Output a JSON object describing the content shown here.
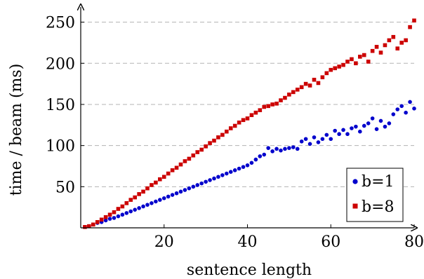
{
  "chart_data": {
    "type": "scatter",
    "xlabel": "sentence length",
    "ylabel": "time / beam (ms)",
    "xlim": [
      0,
      80
    ],
    "ylim": [
      0,
      265
    ],
    "xticks": [
      20,
      40,
      60,
      80
    ],
    "yticks": [
      50,
      100,
      150,
      200,
      250
    ],
    "grid": "horizontal dashed",
    "legend_position": "bottom-right",
    "series": [
      {
        "name": "b=1",
        "marker": "circle",
        "color": "#0000cc",
        "x": [
          1,
          2,
          3,
          4,
          5,
          6,
          7,
          8,
          9,
          10,
          11,
          12,
          13,
          14,
          15,
          16,
          17,
          18,
          19,
          20,
          21,
          22,
          23,
          24,
          25,
          26,
          27,
          28,
          29,
          30,
          31,
          32,
          33,
          34,
          35,
          36,
          37,
          38,
          39,
          40,
          41,
          42,
          43,
          44,
          45,
          46,
          47,
          48,
          49,
          50,
          51,
          52,
          53,
          54,
          55,
          56,
          57,
          58,
          59,
          60,
          61,
          62,
          63,
          64,
          65,
          66,
          67,
          68,
          69,
          70,
          71,
          72,
          73,
          74,
          75,
          76,
          77,
          78,
          79,
          80
        ],
        "y": [
          1,
          2,
          4,
          6,
          7,
          9,
          11,
          12,
          14,
          16,
          18,
          20,
          22,
          24,
          26,
          28,
          30,
          32,
          34,
          36,
          38,
          40,
          42,
          44,
          46,
          48,
          50,
          52,
          54,
          56,
          58,
          60,
          62,
          64,
          66,
          68,
          70,
          72,
          74,
          76,
          79,
          83,
          87,
          89,
          97,
          93,
          96,
          94,
          96,
          97,
          98,
          96,
          105,
          108,
          102,
          110,
          104,
          108,
          113,
          108,
          118,
          114,
          119,
          114,
          121,
          123,
          117,
          124,
          127,
          133,
          120,
          130,
          123,
          127,
          138,
          144,
          148,
          140,
          153,
          145
        ],
        "y_note": "approximate, read from plot"
      },
      {
        "name": "b=8",
        "marker": "square",
        "color": "#cc0000",
        "x": [
          1,
          2,
          3,
          4,
          5,
          6,
          7,
          8,
          9,
          10,
          11,
          12,
          13,
          14,
          15,
          16,
          17,
          18,
          19,
          20,
          21,
          22,
          23,
          24,
          25,
          26,
          27,
          28,
          29,
          30,
          31,
          32,
          33,
          34,
          35,
          36,
          37,
          38,
          39,
          40,
          41,
          42,
          43,
          44,
          45,
          46,
          47,
          48,
          49,
          50,
          51,
          52,
          53,
          54,
          55,
          56,
          57,
          58,
          59,
          60,
          61,
          62,
          63,
          64,
          65,
          66,
          67,
          68,
          69,
          70,
          71,
          72,
          73,
          74,
          75,
          76,
          77,
          78,
          79,
          80
        ],
        "y": [
          1,
          2,
          4,
          7,
          10,
          13,
          16,
          19,
          23,
          26,
          30,
          34,
          37,
          41,
          44,
          48,
          52,
          55,
          59,
          62,
          66,
          70,
          73,
          77,
          81,
          84,
          88,
          92,
          95,
          99,
          103,
          106,
          110,
          113,
          117,
          121,
          124,
          128,
          131,
          133,
          137,
          140,
          143,
          147,
          148,
          150,
          151,
          155,
          158,
          162,
          165,
          168,
          171,
          175,
          173,
          180,
          176,
          183,
          188,
          192,
          194,
          196,
          198,
          202,
          205,
          200,
          208,
          210,
          202,
          215,
          220,
          213,
          222,
          228,
          232,
          218,
          225,
          228,
          244,
          252
        ],
        "y_note": "approximate, read from plot"
      }
    ]
  }
}
